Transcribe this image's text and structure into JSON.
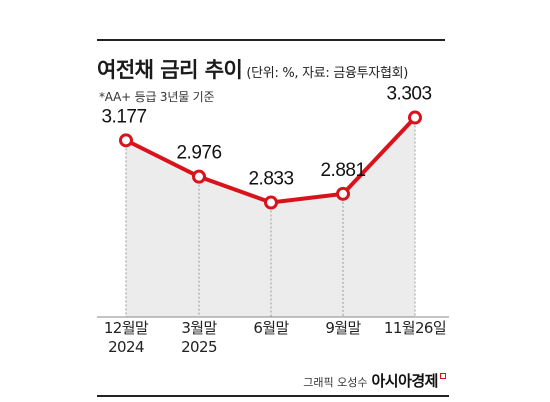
{
  "header": {
    "title": "여전채 금리 추이",
    "unit_note": "(단위: %, 자료: 금융투자협회)",
    "subtitle": "*AA+ 등급 3년물 기준"
  },
  "chart_data": {
    "type": "line",
    "title": "여전채 금리 추이",
    "categories": [
      [
        "12월말",
        "2024"
      ],
      [
        "3월말",
        "2025"
      ],
      [
        "6월말"
      ],
      [
        "9월말"
      ],
      [
        "11월26일"
      ]
    ],
    "series": [
      {
        "values": [
          3.177,
          2.976,
          2.833,
          2.881,
          3.303
        ]
      }
    ],
    "data_labels": [
      "3.177",
      "2.976",
      "2.833",
      "2.881",
      "3.303"
    ],
    "ylim": [
      2.2,
      3.4
    ],
    "grid": false,
    "area_fill": true,
    "colors": {
      "line": "#d9121b",
      "area": "#ececec",
      "marker_fill": "#ffffff",
      "dropline": "#9a9a9a"
    }
  },
  "footer": {
    "credit": "그래픽 오성수",
    "brand": "아시아경제"
  }
}
